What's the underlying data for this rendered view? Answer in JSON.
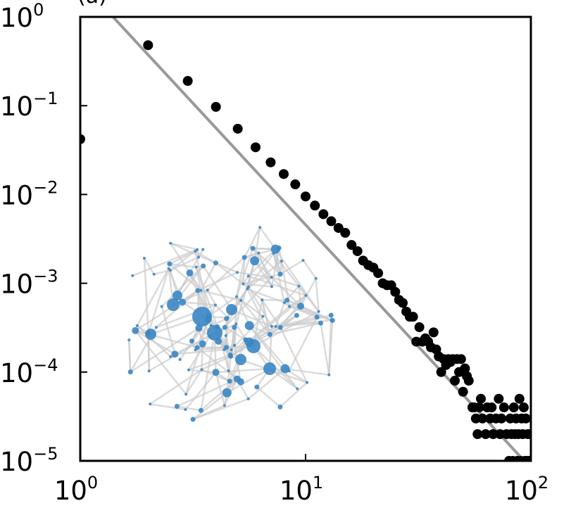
{
  "chart_data": {
    "type": "scatter",
    "title": "",
    "corner_label": "(a)",
    "xlabel": "",
    "ylabel": "",
    "xscale": "log",
    "yscale": "log",
    "xlim": [
      1,
      100
    ],
    "ylim": [
      1e-05,
      1
    ],
    "grid": false,
    "legend": "none",
    "x_ticks": [
      {
        "value": 1,
        "base": "10",
        "exp": "0"
      },
      {
        "value": 10,
        "base": "10",
        "exp": "1"
      },
      {
        "value": 100,
        "base": "10",
        "exp": "2"
      }
    ],
    "y_ticks": [
      {
        "value": 1,
        "base": "10",
        "exp": "0"
      },
      {
        "value": 0.1,
        "base": "10",
        "exp": "−1"
      },
      {
        "value": 0.01,
        "base": "10",
        "exp": "−2"
      },
      {
        "value": 0.001,
        "base": "10",
        "exp": "−3"
      },
      {
        "value": 0.0001,
        "base": "10",
        "exp": "−4"
      },
      {
        "value": 1e-05,
        "base": "10",
        "exp": "−5"
      }
    ],
    "series": [
      {
        "color": "#000000",
        "points": [
          [
            1,
            0.042
          ],
          [
            2,
            0.48
          ],
          [
            3,
            0.19
          ],
          [
            4,
            0.097
          ],
          [
            5,
            0.055
          ],
          [
            6,
            0.034
          ],
          [
            7,
            0.023
          ],
          [
            8,
            0.017
          ],
          [
            9,
            0.013
          ],
          [
            10,
            0.0095
          ],
          [
            11,
            0.0075
          ],
          [
            12,
            0.006
          ],
          [
            13,
            0.005
          ],
          [
            14,
            0.0042
          ],
          [
            15,
            0.0037
          ],
          [
            16,
            0.0027
          ],
          [
            17,
            0.0023
          ],
          [
            18,
            0.0018
          ],
          [
            19,
            0.0016
          ],
          [
            20,
            0.0015
          ],
          [
            21,
            0.0013
          ],
          [
            22,
            0.001
          ],
          [
            23,
            0.00095
          ],
          [
            24,
            0.00095
          ],
          [
            25,
            0.0008
          ],
          [
            26,
            0.00065
          ],
          [
            27,
            0.0006
          ],
          [
            28,
            0.00048
          ],
          [
            29,
            0.00042
          ],
          [
            30,
            0.00042
          ],
          [
            31,
            0.00022
          ],
          [
            32,
            0.00032
          ],
          [
            33,
            0.00022
          ],
          [
            34,
            0.00024
          ],
          [
            35,
            0.00022
          ],
          [
            36,
            0.00019
          ],
          [
            37,
            0.00028
          ],
          [
            38,
            0.00018
          ],
          [
            39,
            0.00015
          ],
          [
            40,
            0.0001
          ],
          [
            41,
            0.00014
          ],
          [
            42,
            0.00012
          ],
          [
            43,
            0.00014
          ],
          [
            44,
            0.00013
          ],
          [
            45,
            0.00014
          ],
          [
            46,
            8e-05
          ],
          [
            47,
            0.00014
          ],
          [
            48,
            0.0001
          ],
          [
            49,
            0.00014
          ],
          [
            50,
            6e-05
          ],
          [
            51,
            0.00011
          ],
          [
            52,
            9e-05
          ],
          [
            53,
            8e-05
          ],
          [
            55,
            4e-05
          ],
          [
            56,
            4e-05
          ],
          [
            57,
            3e-05
          ],
          [
            58,
            2e-05
          ],
          [
            59,
            4e-05
          ],
          [
            60,
            5e-05
          ],
          [
            61,
            3e-05
          ],
          [
            63,
            2e-05
          ],
          [
            64,
            4e-05
          ],
          [
            66,
            3e-05
          ],
          [
            67,
            4e-05
          ],
          [
            68,
            2e-05
          ],
          [
            70,
            3e-05
          ],
          [
            72,
            5e-05
          ],
          [
            73,
            2e-05
          ],
          [
            74,
            3e-05
          ],
          [
            76,
            4e-05
          ],
          [
            78,
            2e-05
          ],
          [
            80,
            1e-05
          ],
          [
            81,
            3e-05
          ],
          [
            82,
            2e-05
          ],
          [
            83,
            1e-05
          ],
          [
            84,
            4e-05
          ],
          [
            85,
            2e-05
          ],
          [
            86,
            3e-05
          ],
          [
            87,
            1e-05
          ],
          [
            88,
            2e-05
          ],
          [
            89,
            5e-05
          ],
          [
            90,
            1e-05
          ],
          [
            91,
            3e-05
          ],
          [
            92,
            2e-05
          ],
          [
            93,
            4e-05
          ],
          [
            94,
            1e-05
          ],
          [
            95,
            3e-05
          ],
          [
            96,
            1e-05
          ],
          [
            97,
            2e-05
          ],
          [
            98,
            1e-05
          ],
          [
            99,
            2e-05
          ],
          [
            100,
            1e-05
          ]
        ]
      }
    ],
    "reference_line": {
      "color": "#999999",
      "points": [
        [
          1,
          2.5
        ],
        [
          100,
          8.3e-06
        ]
      ]
    },
    "inset": {
      "type": "network",
      "node_color": "#3a86c4",
      "edge_color": "#cccccc"
    }
  }
}
